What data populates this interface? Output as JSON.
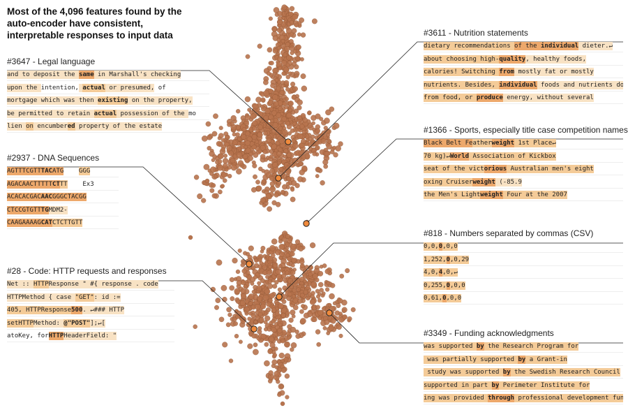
{
  "title": "Most of the 4,096 features found by the auto-encoder have consistent, interpretable responses to input data",
  "colors": {
    "point": "#b8744e",
    "point_stroke": "#8f5534",
    "marker": "#f08a3c",
    "highlight_light": "#f8e2c4",
    "highlight_mid": "#f4cb98",
    "highlight_strong": "#eda86b",
    "highlight_max": "#e8894a"
  },
  "features": [
    {
      "id": "3647",
      "title": "#3647 - Legal language",
      "snippets": [
        [
          [
            "and to deposit the ",
            1
          ],
          [
            "same",
            3,
            true
          ],
          [
            " in Marshall's checking",
            1
          ]
        ],
        [
          [
            "upon the ",
            1
          ],
          [
            "intention,",
            0
          ],
          [
            " ",
            1
          ],
          [
            "actual",
            2,
            true
          ],
          [
            " or presumed,",
            1
          ],
          [
            " of",
            0
          ]
        ],
        [
          [
            "mortgage which was then ",
            1
          ],
          [
            "existing",
            2,
            true
          ],
          [
            " on the property,",
            1
          ]
        ],
        [
          [
            "be permitted to retain ",
            1
          ],
          [
            "actual",
            2,
            true
          ],
          [
            " possession of the ",
            1
          ],
          [
            "mo",
            0
          ]
        ],
        [
          [
            "lien ",
            1
          ],
          [
            "on",
            2
          ],
          [
            " encumber",
            1
          ],
          [
            "ed",
            2,
            true
          ],
          [
            " property of the estate",
            1
          ]
        ]
      ]
    },
    {
      "id": "2937",
      "title": "#2937 - DNA Sequences",
      "snippets": [
        [
          [
            "AGTTTCGTT",
            3
          ],
          [
            "TAC",
            3,
            true
          ],
          [
            "ATG",
            3
          ],
          [
            "    ",
            0
          ],
          [
            "GGG",
            2
          ]
        ],
        [
          [
            "AGACAACTTTTT",
            3
          ],
          [
            "CT",
            3,
            true
          ],
          [
            "TT",
            2
          ],
          [
            "    Ex3",
            0
          ]
        ],
        [
          [
            "ACACACGAC",
            3
          ],
          [
            "AAC",
            3,
            true
          ],
          [
            "GGGCTACGG",
            3
          ]
        ],
        [
          [
            "CTCCGTGTT",
            3
          ],
          [
            "TG",
            3,
            true
          ],
          [
            "MDM2-",
            1
          ]
        ],
        [
          [
            "CAAGAAAAG",
            3
          ],
          [
            "CAT",
            3,
            true
          ],
          [
            "CTCTTGTT",
            2
          ]
        ]
      ]
    },
    {
      "id": "28",
      "title": "#28 - Code: HTTP requests and responses",
      "snippets": [
        [
          [
            "Net :: ",
            1
          ],
          [
            "HTTP",
            2
          ],
          [
            "Response",
            1
          ],
          [
            " \" #{ response . code",
            1
          ]
        ],
        [
          [
            "HTTPMethod { case ",
            1
          ],
          [
            "\"GET\"",
            2
          ],
          [
            ": id :=",
            1
          ]
        ],
        [
          [
            "405, HTTPResponse",
            2
          ],
          [
            "500",
            3,
            true
          ],
          [
            ". ↵### HTTP",
            1
          ]
        ],
        [
          [
            "setHTTP",
            2
          ],
          [
            "Method: ",
            1
          ],
          [
            "@\"POST\"",
            2,
            true
          ],
          [
            "];↵[",
            1
          ]
        ],
        [
          [
            "atoKey, for",
            0
          ],
          [
            "HTTP",
            3,
            true
          ],
          [
            "HeaderField: \"",
            1
          ]
        ]
      ]
    },
    {
      "id": "3611",
      "title": "#3611 - Nutrition statements",
      "snippets": [
        [
          [
            "dietary recommendations ",
            2
          ],
          [
            "of the ",
            3
          ],
          [
            "individual",
            3,
            true
          ],
          [
            " dieter.↵",
            1
          ]
        ],
        [
          [
            "about choosing high-",
            2
          ],
          [
            "quality",
            3,
            true
          ],
          [
            ", healthy foods,",
            1
          ]
        ],
        [
          [
            "calories! Switching ",
            2
          ],
          [
            "from",
            3,
            true
          ],
          [
            " mostly fat or mostly",
            1
          ]
        ],
        [
          [
            "nutrients. Besides, ",
            2
          ],
          [
            "individual",
            3,
            true
          ],
          [
            " foods and nutrients do",
            1
          ]
        ],
        [
          [
            "from food, or ",
            2
          ],
          [
            "produce",
            3,
            true
          ],
          [
            " energy, without several",
            1
          ]
        ]
      ]
    },
    {
      "id": "1366",
      "title": "#1366 - Sports, especially title case competition names",
      "snippets": [
        [
          [
            "Black Belt Fe",
            3
          ],
          [
            "ather",
            2
          ],
          [
            "weight",
            3,
            true
          ],
          [
            " 1st Place↵",
            2
          ]
        ],
        [
          [
            "70 kg)↵",
            2
          ],
          [
            "World",
            3,
            true
          ],
          [
            " Association of Kickbox",
            2
          ]
        ],
        [
          [
            "seat of the vict",
            2
          ],
          [
            "orious",
            3,
            true
          ],
          [
            " Australian men's eight",
            2
          ]
        ],
        [
          [
            "oxing Cruiser",
            2
          ],
          [
            "weight",
            3,
            true
          ],
          [
            " (-85.9",
            1
          ]
        ],
        [
          [
            "the Men's Light",
            2
          ],
          [
            "weight",
            3,
            true
          ],
          [
            " Four at the 2007",
            2
          ]
        ]
      ]
    },
    {
      "id": "818",
      "title": "#818 - Numbers separated by commas (CSV)",
      "snippets": [
        [
          [
            "0,0,",
            2
          ],
          [
            "0",
            3,
            true
          ],
          [
            ",0,0",
            2
          ]
        ],
        [
          [
            "1,252,",
            2
          ],
          [
            "0",
            3,
            true
          ],
          [
            ",0,29",
            2
          ]
        ],
        [
          [
            "4,0,",
            2
          ],
          [
            "4",
            3,
            true
          ],
          [
            ",0,↵",
            2
          ]
        ],
        [
          [
            "0,255,",
            2
          ],
          [
            "0",
            3,
            true
          ],
          [
            ",0,0",
            2
          ]
        ],
        [
          [
            "0,61,",
            2
          ],
          [
            "0",
            3,
            true
          ],
          [
            ",0,0",
            2
          ]
        ]
      ]
    },
    {
      "id": "3349",
      "title": "#3349 - Funding acknowledgments",
      "snippets": [
        [
          [
            "was supported ",
            2
          ],
          [
            "by",
            3,
            true
          ],
          [
            " the Research Program for",
            2
          ]
        ],
        [
          [
            " was partially supported ",
            2
          ],
          [
            "by",
            3,
            true
          ],
          [
            " a Grant-in",
            2
          ]
        ],
        [
          [
            " study was supported ",
            2
          ],
          [
            "by",
            3,
            true
          ],
          [
            " the Swedish Research Council",
            2
          ]
        ],
        [
          [
            "supported in part ",
            2
          ],
          [
            "by",
            3,
            true
          ],
          [
            " Perimeter Institute for",
            2
          ]
        ],
        [
          [
            "ing was provided ",
            2
          ],
          [
            "through",
            3,
            true
          ],
          [
            " professional development fund",
            2
          ]
        ]
      ]
    }
  ]
}
